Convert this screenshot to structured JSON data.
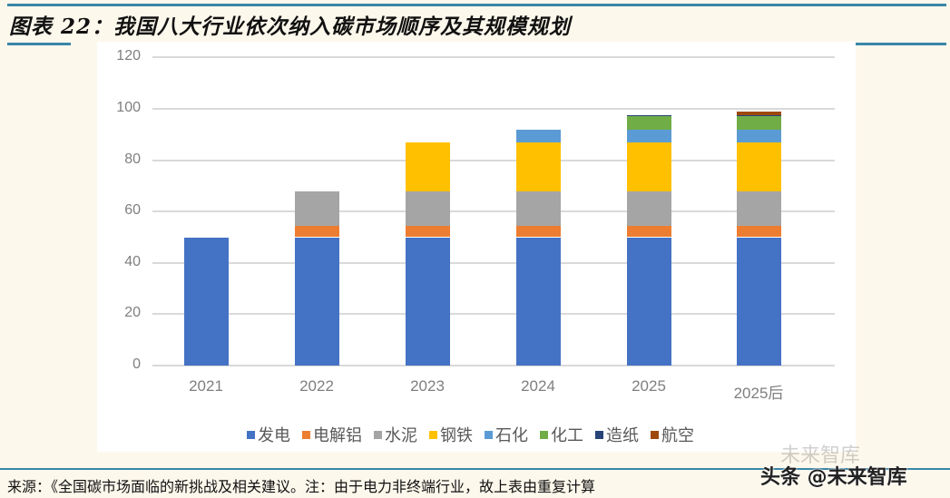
{
  "header": {
    "title": "图表 22：我国八大行业依次纳入碳市场顺序及其规模规划"
  },
  "chart_data": {
    "type": "bar",
    "stacked": true,
    "title": "我国八大行业依次纳入碳市场顺序及其规模规划",
    "xlabel": "",
    "ylabel": "",
    "ylim": [
      0,
      120
    ],
    "yticks": [
      0,
      20,
      40,
      60,
      80,
      100,
      120
    ],
    "grid": true,
    "legend_position": "bottom",
    "categories": [
      "2021",
      "2022",
      "2023",
      "2024",
      "2025",
      "2025后"
    ],
    "series": [
      {
        "name": "发电",
        "color": "#4472c4",
        "values": [
          50,
          50,
          50,
          50,
          50,
          50
        ]
      },
      {
        "name": "电解铝",
        "color": "#ed7d31",
        "values": [
          0,
          4.5,
          4.5,
          4.5,
          4.5,
          4.5
        ]
      },
      {
        "name": "水泥",
        "color": "#a5a5a5",
        "values": [
          0,
          13.5,
          13.5,
          13.5,
          13.5,
          13.5
        ]
      },
      {
        "name": "钢铁",
        "color": "#ffc000",
        "values": [
          0,
          0,
          19,
          19,
          19,
          19
        ]
      },
      {
        "name": "石化",
        "color": "#5b9bd5",
        "values": [
          0,
          0,
          0,
          5,
          5,
          5
        ]
      },
      {
        "name": "化工",
        "color": "#70ad47",
        "values": [
          0,
          0,
          0,
          0,
          5,
          5
        ]
      },
      {
        "name": "造纸",
        "color": "#264478",
        "values": [
          0,
          0,
          0,
          0,
          0.6,
          0.6
        ]
      },
      {
        "name": "航空",
        "color": "#9e480e",
        "values": [
          0,
          0,
          0,
          0,
          0,
          1.3
        ]
      }
    ]
  },
  "footer": {
    "source": "来源：《全国碳市场面临的新挑战及相关建议。注：由于电力非终端行业，故上表由重复计算",
    "watermark": "头条 @未来智库",
    "watermark_ghost": "未来智库"
  }
}
